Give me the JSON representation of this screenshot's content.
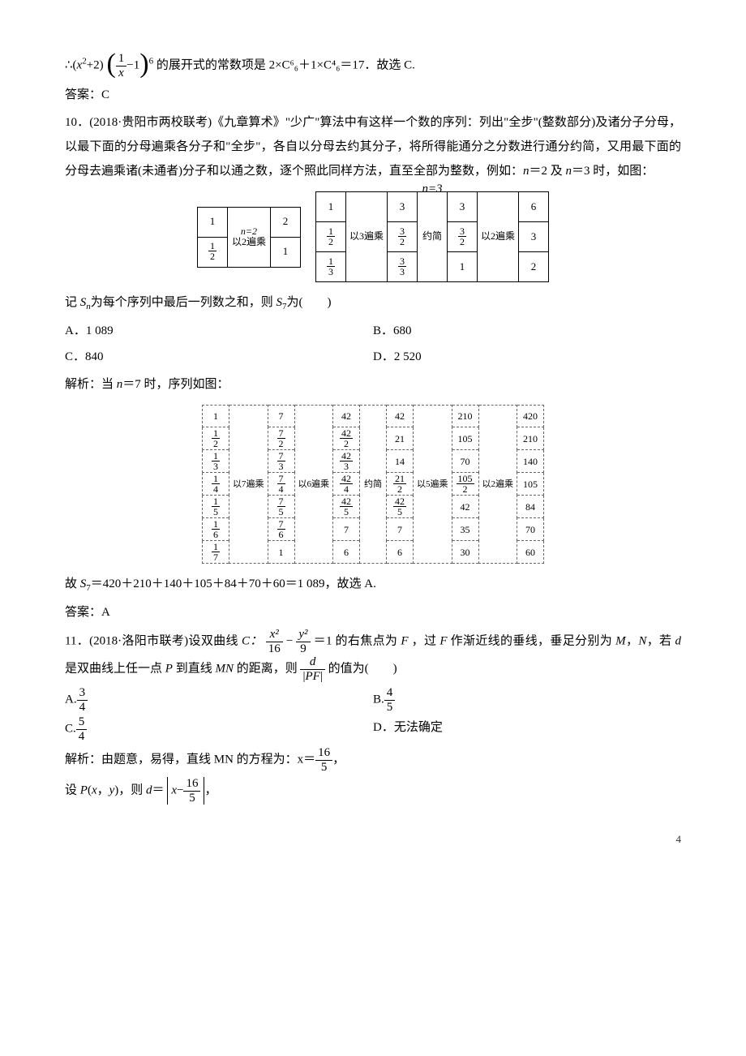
{
  "line1_prefix": "∴(",
  "line1_xsq": "x",
  "line1_plus2": "+2)",
  "line1_frac_num": "1",
  "line1_frac_den": "x",
  "line1_minus1": "−1",
  "line1_pow6": "6",
  "line1_tail": "的展开式的常数项是 2×C⁶₆＋1×C⁴₆＝17．故选 C.",
  "ans9": "答案：C",
  "q10_head": "10．(2018·贵阳市两校联考)《九章算术》\"少广\"算法中有这样一个数的序列：列出\"全步\"(整数部分)及诸分子分母，以最下面的分母遍乘各分子和\"全步\"，各自以分母去约其分子，将所得能通分之分数进行通分约简，又用最下面的分母去遍乘诸(未通者)分子和以通之数，逐个照此同样方法，直至全部为整数，例如：",
  "q10_tail_n": "n＝2 及 n＝3 时，如图：",
  "n2_label": "n=2",
  "n3_label": "n=3",
  "op2": "以2遍乘",
  "op3": "以3遍乘",
  "yuejian": "约简",
  "n2_col1": [
    "1",
    "1/2"
  ],
  "n2_col2": [
    "2",
    "1"
  ],
  "n3_col1": [
    "1",
    "1/2",
    "1/3"
  ],
  "n3_col2": [
    "3",
    "3/2",
    "3/3"
  ],
  "n3_col3": [
    "3",
    "3/2",
    "1"
  ],
  "n3_col4": [
    "6",
    "3",
    "2"
  ],
  "q10_line2_a": "记 ",
  "q10_line2_sn": "S",
  "q10_line2_b": "为每个序列中最后一列数之和，则 ",
  "q10_line2_s7": "S",
  "q10_line2_c": "为(　　)",
  "q10_optA": "A．1 089",
  "q10_optB": "B．680",
  "q10_optC": "C．840",
  "q10_optD": "D．2 520",
  "q10_sol1": "解析：当 n＝7 时，序列如图：",
  "big_col1": [
    "1",
    "1/2",
    "1/3",
    "1/4",
    "1/5",
    "1/6",
    "1/7"
  ],
  "big_lab1": "以7遍乘",
  "big_col2": [
    "7",
    "7/2",
    "7/3",
    "7/4",
    "7/5",
    "7/6",
    "1"
  ],
  "big_lab2": "以6遍乘",
  "big_col3": [
    "42",
    "42/2",
    "42/3",
    "42/4",
    "42/5",
    "7",
    "6"
  ],
  "big_lab3": "约简",
  "big_col4": [
    "42",
    "21",
    "14",
    "21/2",
    "42/5",
    "7",
    "6"
  ],
  "big_lab4": "以5遍乘",
  "big_col5": [
    "210",
    "105",
    "70",
    "105/2",
    "42",
    "35",
    "30"
  ],
  "big_lab5": "以2遍乘",
  "big_col6": [
    "420",
    "210",
    "140",
    "105",
    "84",
    "70",
    "60"
  ],
  "q10_sol2": "故 S₇＝420＋210＋140＋105＋84＋70＋60＝1 089，故选 A.",
  "ans10": "答案：A",
  "q11_a": "11．(2018·洛阳市联考)设双曲线 ",
  "q11_c": "C：",
  "q11_hx_num": "x²",
  "q11_hx_den": "16",
  "q11_minus": "−",
  "q11_hy_num": "y²",
  "q11_hy_den": "9",
  "q11_eq1": "＝1 的右焦点为 ",
  "q11_F": "F",
  "q11_b": "，过 F 作渐近线的垂线，垂足分别为 M，N，若 d 是双曲线上任一点 P 到直线 MN 的距离，则",
  "q11_dfrac_num": "d",
  "q11_dfrac_den": "|PF|",
  "q11_tail": "的值为(　　)",
  "q11_optA_pre": "A.",
  "q11_A_num": "3",
  "q11_A_den": "4",
  "q11_optB_pre": "B.",
  "q11_B_num": "4",
  "q11_B_den": "5",
  "q11_optC_pre": "C.",
  "q11_C_num": "5",
  "q11_C_den": "4",
  "q11_optD": "D．无法确定",
  "q11_sol1_a": "解析：由题意，易得，直线 MN 的方程为：x＝",
  "q11_sol1_num": "16",
  "q11_sol1_den": "5",
  "q11_sol1_b": "，",
  "q11_sol2_a": "设 P(x，y)，则 d＝",
  "q11_sol2_inner_a": "x−",
  "q11_sol2_num": "16",
  "q11_sol2_den": "5",
  "q11_sol2_b": "，",
  "pagenum": "4"
}
